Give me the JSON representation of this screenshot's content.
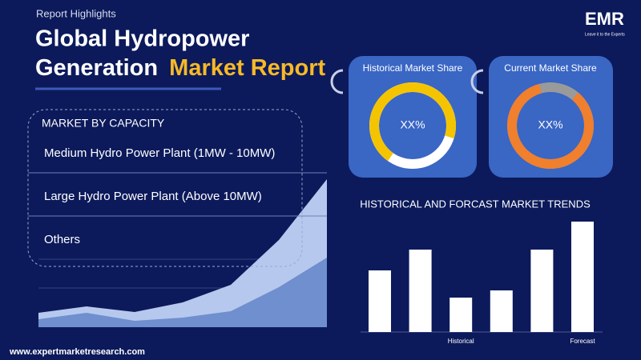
{
  "header": {
    "kicker": "Report Highlights",
    "title_line1": "Global Hydropower",
    "title_line2_white": "Generation",
    "title_line2_highlight": "Market Report"
  },
  "logo": {
    "name": "EMR",
    "tagline": "Leave it to the Experts"
  },
  "share_cards": [
    {
      "title": "Historical Market Share",
      "value_text": "XX%"
    },
    {
      "title": "Current Market Share",
      "value_text": "XX%"
    }
  ],
  "segments": {
    "title": "MARKET BY CAPACITY",
    "items": [
      "Medium Hydro Power Plant (1MW - 10MW)",
      "Large Hydro Power Plant (Above 10MW)",
      "Others"
    ]
  },
  "trend_chart": {
    "type": "bar",
    "title": "HISTORICAL AND FORCAST MARKET TRENDS",
    "categories": [
      null,
      null,
      "Historical",
      null,
      null,
      "Forecast"
    ],
    "values": [
      77,
      103,
      43,
      52,
      103,
      138
    ]
  },
  "footer": {
    "website": "www.expertmarketresearch.com"
  }
}
